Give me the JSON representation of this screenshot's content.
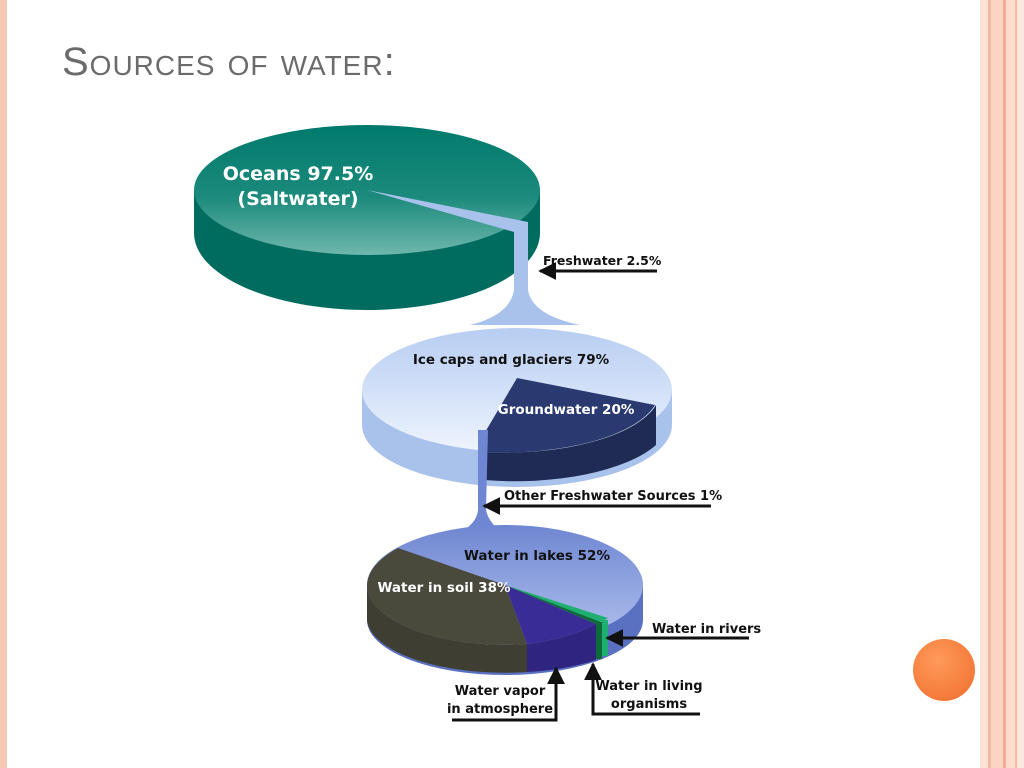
{
  "slide": {
    "title": "Sources of water:"
  },
  "diagram": {
    "oceans": {
      "line1": "Oceans 97.5%",
      "line2": "(Saltwater)",
      "percent": 97.5
    },
    "freshwater": {
      "label": "Freshwater 2.5%",
      "percent": 2.5
    },
    "ice_caps": {
      "label": "Ice caps and glaciers 79%",
      "percent": 79
    },
    "groundwater": {
      "label": "Groundwater 20%",
      "percent": 20
    },
    "other_freshwater": {
      "label": "Other Freshwater Sources 1%",
      "percent": 1
    },
    "lakes": {
      "label": "Water in lakes 52%",
      "percent": 52
    },
    "soil": {
      "label": "Water in soil 38%",
      "percent": 38
    },
    "rivers": {
      "label": "Water in rivers"
    },
    "vapor": {
      "line1": "Water vapor",
      "line2": "in atmosphere"
    },
    "living": {
      "line1": "Water in living",
      "line2": "organisms"
    }
  },
  "colors": {
    "ocean": "#007a6c",
    "ice": "#a9c2ec",
    "groundwater": "#23305e",
    "lakes": "#6f86d2",
    "soil": "#4a4a3c",
    "vapor": "#3a2c96",
    "rivers": "#1eb070",
    "accent": "#f47a3a"
  }
}
